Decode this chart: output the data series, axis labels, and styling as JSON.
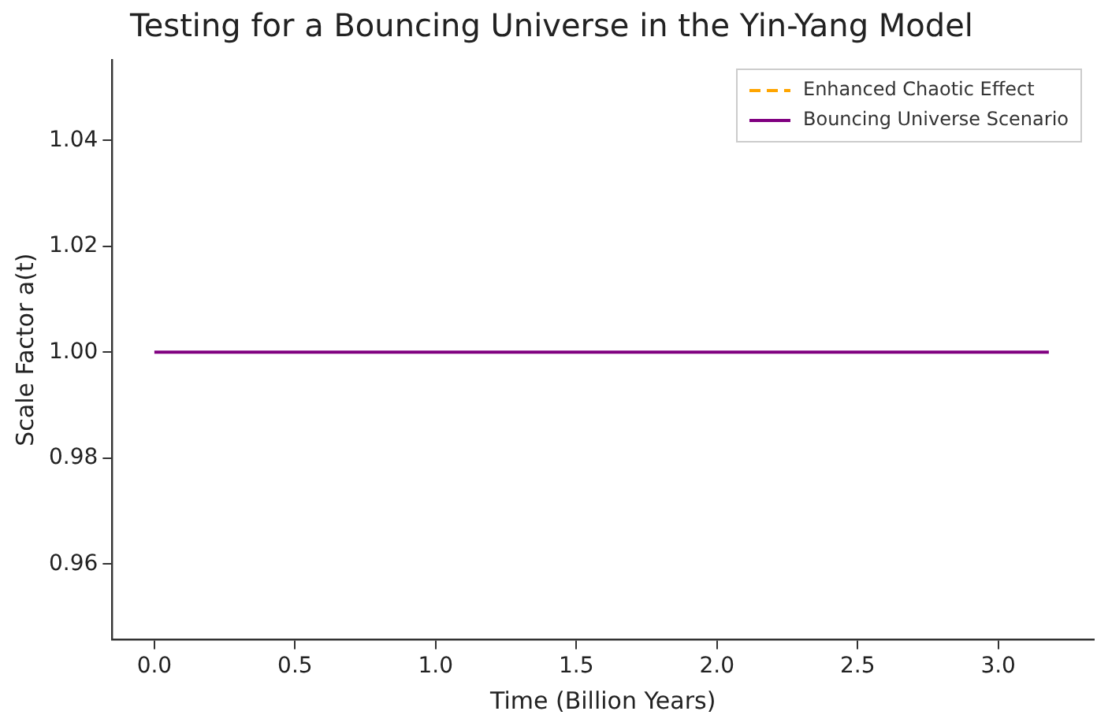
{
  "chart_data": {
    "type": "line",
    "title": "Testing for a Bouncing Universe in the Yin-Yang Model",
    "xlabel": "Time (Billion Years)",
    "ylabel": "Scale Factor a(t)",
    "x": [
      0,
      3.18
    ],
    "series": [
      {
        "name": "Enhanced Chaotic Effect",
        "color": "#ffa500",
        "line_style": "dashed",
        "values": [
          null,
          null
        ]
      },
      {
        "name": "Bouncing Universe Scenario",
        "color": "#800080",
        "line_style": "solid",
        "values": [
          1,
          1
        ]
      }
    ],
    "xlim": [
      -0.15,
      3.34
    ],
    "xticks": [
      {
        "value": 0,
        "label": "0.0"
      },
      {
        "value": 0.5,
        "label": "0.5"
      },
      {
        "value": 1,
        "label": "1.0"
      },
      {
        "value": 1.5,
        "label": "1.5"
      },
      {
        "value": 2,
        "label": "2.0"
      },
      {
        "value": 2.5,
        "label": "2.5"
      },
      {
        "value": 3,
        "label": "3.0"
      }
    ],
    "ylim": [
      0.9457,
      1.0552
    ],
    "yticks": [
      {
        "value": 0.96,
        "label": "0.96"
      },
      {
        "value": 0.98,
        "label": "0.98"
      },
      {
        "value": 1,
        "label": "1.00"
      },
      {
        "value": 1.02,
        "label": "1.02"
      },
      {
        "value": 1.04,
        "label": "1.04"
      }
    ],
    "grid": false,
    "legend": "top right",
    "marker": "none"
  }
}
